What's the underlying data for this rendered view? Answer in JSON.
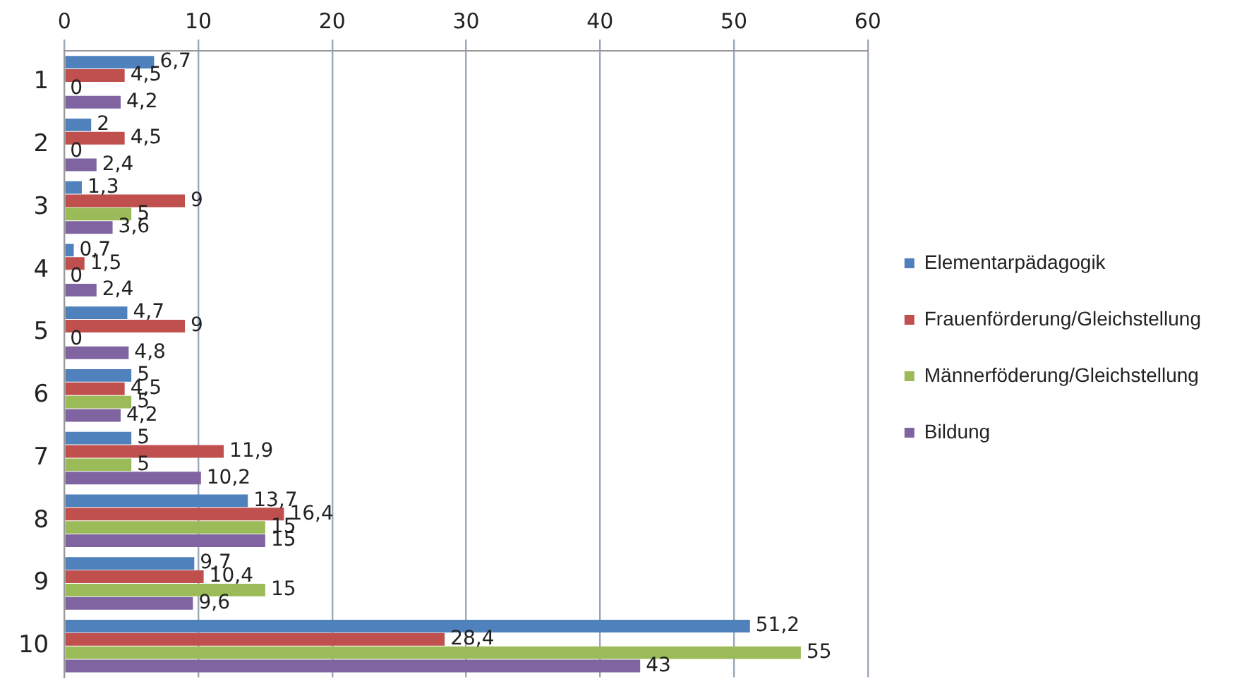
{
  "chart_data": {
    "type": "bar",
    "orientation": "horizontal",
    "categories": [
      "1",
      "2",
      "3",
      "4",
      "5",
      "6",
      "7",
      "8",
      "9",
      "10"
    ],
    "series": [
      {
        "name": "Elementarpädagogik",
        "color": "#4f81bd",
        "values": [
          6.7,
          2,
          1.3,
          0.7,
          4.7,
          5,
          5,
          13.7,
          9.7,
          51.2
        ],
        "value_labels": [
          "6,7",
          "2",
          "1,3",
          "0,7",
          "4,7",
          "5",
          "5",
          "13,7",
          "9,7",
          "51,2"
        ]
      },
      {
        "name": "Frauenförderung/Gleichstellung",
        "color": "#c0504d",
        "values": [
          4.5,
          4.5,
          9,
          1.5,
          9,
          4.5,
          11.9,
          16.4,
          10.4,
          28.4
        ],
        "value_labels": [
          "4,5",
          "4,5",
          "9",
          "1,5",
          "9",
          "4,5",
          "11,9",
          "16,4",
          "10,4",
          "28,4"
        ]
      },
      {
        "name": "Männerföderung/Gleichstellung",
        "color": "#9bbb59",
        "values": [
          0,
          0,
          5,
          0,
          0,
          5,
          5,
          15,
          15,
          55
        ],
        "value_labels": [
          "0",
          "0",
          "5",
          "0",
          "0",
          "5",
          "5",
          "15",
          "15",
          "55"
        ]
      },
      {
        "name": "Bildung",
        "color": "#8064a2",
        "values": [
          4.2,
          2.4,
          3.6,
          2.4,
          4.8,
          4.2,
          10.2,
          15,
          9.6,
          43
        ],
        "value_labels": [
          "4,2",
          "2,4",
          "3,6",
          "2,4",
          "4,8",
          "4,2",
          "10,2",
          "15",
          "9,6",
          "43"
        ]
      }
    ],
    "xlim": [
      0,
      60
    ],
    "xticks": [
      0,
      10,
      20,
      30,
      40,
      50,
      60
    ],
    "grid": "x",
    "legend": "right"
  }
}
